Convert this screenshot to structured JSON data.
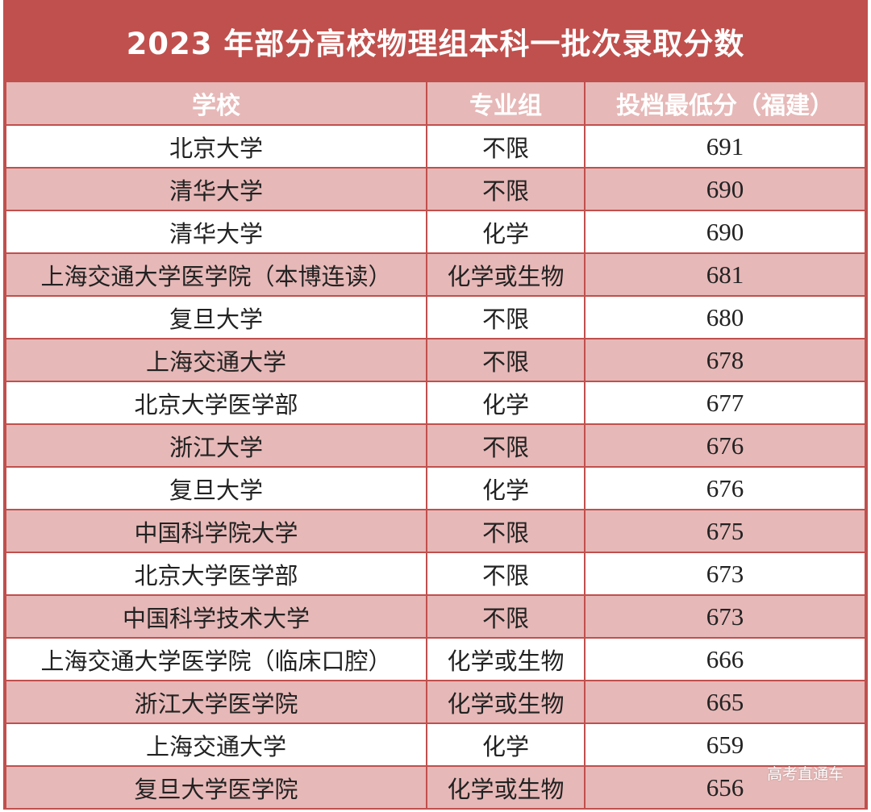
{
  "title": "2023 年部分高校物理组本科一批次录取分数",
  "colors": {
    "accent": "#c0504d",
    "band": "#e6b8b7",
    "header_text": "#ffffff"
  },
  "table": {
    "headers": [
      "学校",
      "专业组",
      "投档最低分（福建）"
    ],
    "rows": [
      {
        "school": "北京大学",
        "group": "不限",
        "score": "691"
      },
      {
        "school": "清华大学",
        "group": "不限",
        "score": "690"
      },
      {
        "school": "清华大学",
        "group": "化学",
        "score": "690"
      },
      {
        "school": "上海交通大学医学院（本博连读）",
        "group": "化学或生物",
        "score": "681"
      },
      {
        "school": "复旦大学",
        "group": "不限",
        "score": "680"
      },
      {
        "school": "上海交通大学",
        "group": "不限",
        "score": "678"
      },
      {
        "school": "北京大学医学部",
        "group": "化学",
        "score": "677"
      },
      {
        "school": "浙江大学",
        "group": "不限",
        "score": "676"
      },
      {
        "school": "复旦大学",
        "group": "化学",
        "score": "676"
      },
      {
        "school": "中国科学院大学",
        "group": "不限",
        "score": "675"
      },
      {
        "school": "北京大学医学部",
        "group": "不限",
        "score": "673"
      },
      {
        "school": "中国科学技术大学",
        "group": "不限",
        "score": "673"
      },
      {
        "school": "上海交通大学医学院（临床口腔）",
        "group": "化学或生物",
        "score": "666"
      },
      {
        "school": "浙江大学医学院",
        "group": "化学或生物",
        "score": "665"
      },
      {
        "school": "上海交通大学",
        "group": "化学",
        "score": "659"
      },
      {
        "school": "复旦大学医学院",
        "group": "化学或生物",
        "score": "656"
      }
    ]
  },
  "watermark": "高考直通车"
}
